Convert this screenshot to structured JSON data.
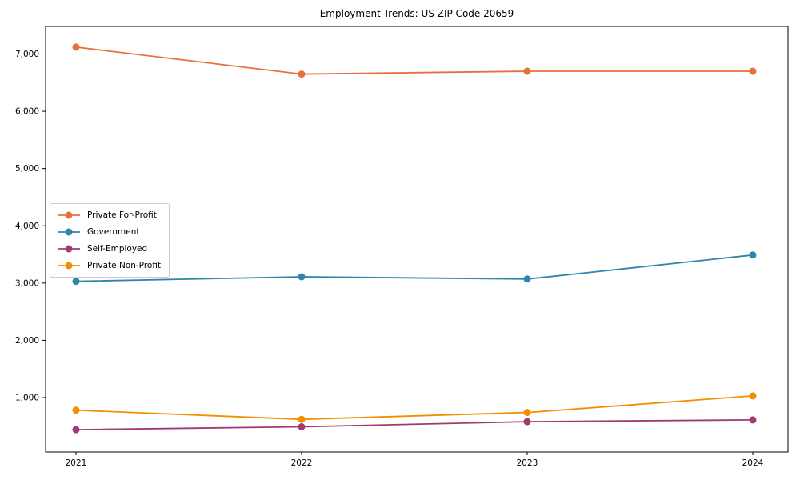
{
  "figure": {
    "title": "Employment Trends: US ZIP Code 20659"
  },
  "chart_data": {
    "type": "line",
    "title": "Employment Trends: US ZIP Code 20659",
    "xlabel": "",
    "ylabel": "",
    "grid": false,
    "legend_position": "center-left",
    "marker": "circle",
    "x": [
      2021,
      2022,
      2023,
      2024
    ],
    "x_labels": [
      "2021",
      "2022",
      "2023",
      "2024"
    ],
    "yticks": [
      1000,
      2000,
      3000,
      4000,
      5000,
      6000,
      7000
    ],
    "ytick_labels": [
      "1,000",
      "2,000",
      "3,000",
      "4,000",
      "5,000",
      "6,000",
      "7,000"
    ],
    "ylim": [
      150,
      7480
    ],
    "series": [
      {
        "name": "Private For-Profit",
        "color": "#E8703A",
        "values": [
          7120,
          6650,
          6700,
          6700
        ]
      },
      {
        "name": "Government",
        "color": "#2E86AB",
        "values": [
          3030,
          3110,
          3070,
          3490
        ]
      },
      {
        "name": "Self-Employed",
        "color": "#A23B72",
        "values": [
          440,
          490,
          580,
          610
        ]
      },
      {
        "name": "Private Non-Profit",
        "color": "#F18F01",
        "values": [
          780,
          620,
          740,
          1030
        ]
      }
    ]
  }
}
